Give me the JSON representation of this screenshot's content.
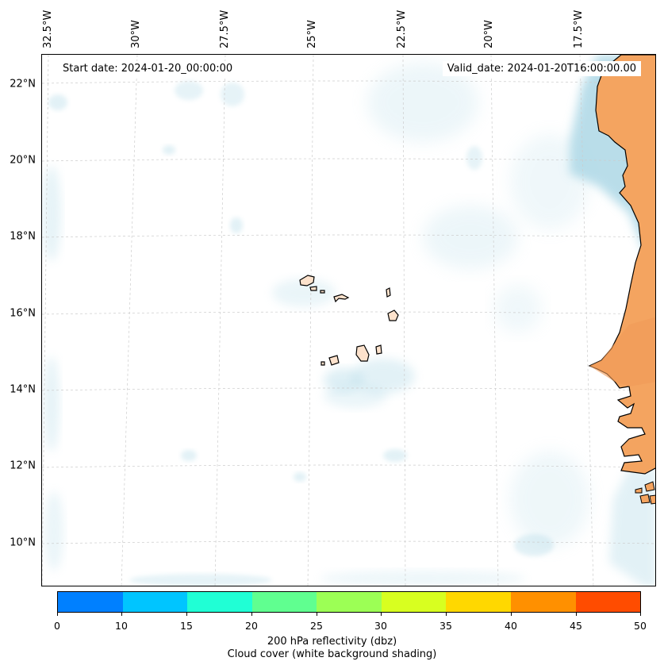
{
  "map": {
    "start_date": "Start date: 2024-01-20_00:00:00",
    "valid_date": "Valid_date: 2024-01-20T16:00:00.00",
    "lat_labels": [
      "22°N",
      "20°N",
      "18°N",
      "16°N",
      "14°N",
      "12°N",
      "10°N"
    ],
    "lon_labels": [
      "32.5°W",
      "30°W",
      "27.5°W",
      "25°W",
      "22.5°W",
      "20°W",
      "17.5°W"
    ],
    "region": "Cape Verde Islands and West African coast",
    "land_color": "#f4a460",
    "cloud_color": "#add8e6",
    "island_fill": "#fde2cc"
  },
  "colorbar": {
    "colors": [
      "#0080ff",
      "#00c5ff",
      "#20ffd5",
      "#60ff90",
      "#9cff55",
      "#d8ff20",
      "#ffd800",
      "#ff9000",
      "#ff4c00"
    ],
    "ticks": [
      "0",
      "10",
      "15",
      "20",
      "25",
      "30",
      "35",
      "40",
      "45",
      "50"
    ],
    "label_line1": "200 hPa reflectivity (dbz)",
    "label_line2": "Cloud cover (white background shading)"
  }
}
